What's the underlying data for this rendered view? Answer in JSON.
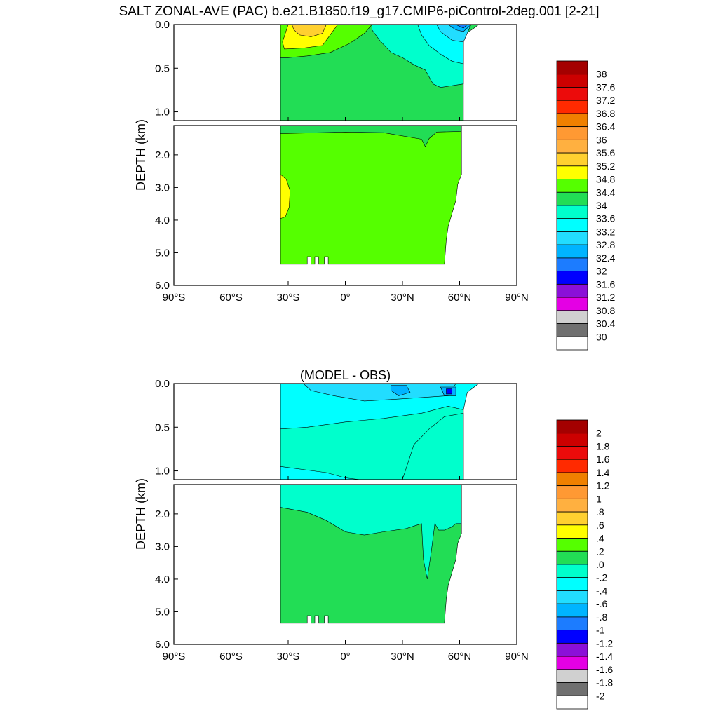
{
  "page": {
    "title": "SALT ZONAL-AVE (PAC) b.e21.B1850.f19_g17.CMIP6-piControl-2deg.001 [2-21]"
  },
  "chart_data": [
    {
      "type": "heatmap",
      "title": "",
      "xlabel": "",
      "ylabel": "DEPTH (km)",
      "xlim": [
        -90,
        90
      ],
      "ylim": [
        6,
        0
      ],
      "x_ticks": [
        {
          "v": -90,
          "label": "90°S"
        },
        {
          "v": -60,
          "label": "60°S"
        },
        {
          "v": -30,
          "label": "30°S"
        },
        {
          "v": 0,
          "label": "0°"
        },
        {
          "v": 30,
          "label": "30°N"
        },
        {
          "v": 60,
          "label": "60°N"
        },
        {
          "v": 90,
          "label": "90°N"
        }
      ],
      "y_ticks_upper": [
        {
          "v": 0.0,
          "label": "0.0"
        },
        {
          "v": 0.5,
          "label": "0.5"
        },
        {
          "v": 1.0,
          "label": "1.0"
        }
      ],
      "y_ticks_lower": [
        {
          "v": 2,
          "label": "2.0"
        },
        {
          "v": 3,
          "label": "3.0"
        },
        {
          "v": 4,
          "label": "4.0"
        },
        {
          "v": 5,
          "label": "5.0"
        },
        {
          "v": 6,
          "label": "6.0"
        }
      ],
      "colorbar": {
        "labels": [
          "38",
          "37.6",
          "37.2",
          "36.8",
          "36.4",
          "36",
          "35.6",
          "35.2",
          "34.8",
          "34.4",
          "34",
          "33.6",
          "33.2",
          "32.8",
          "32.4",
          "32",
          "31.6",
          "31.2",
          "30.8",
          "30.4",
          "30"
        ],
        "colors": [
          "#a40000",
          "#cc0000",
          "#ec0b0b",
          "#ff2a00",
          "#f08000",
          "#ff9933",
          "#ffb040",
          "#ffd030",
          "#ffff00",
          "#55ff00",
          "#22dd55",
          "#00ffcc",
          "#00ffff",
          "#22ddff",
          "#00b4ff",
          "#1c7cff",
          "#0000ff",
          "#8b10d8",
          "#e400e4",
          "#d0d0d0",
          "#707070",
          "#ffffff"
        ]
      },
      "basin": {
        "south_edge_lat": -34,
        "north_edge_upper_lat": 62,
        "bottom_depth_km": 5.35
      },
      "field_summary": [
        {
          "region": "deep interior",
          "range": "34.4-34.8"
        },
        {
          "region": "upper subtropical south",
          "range": "35.2-35.6"
        },
        {
          "region": "upper north pacific",
          "range": "33.2-34.0"
        },
        {
          "region": "far north surface",
          "range": "32.0-32.8"
        }
      ]
    },
    {
      "type": "heatmap",
      "title": "(MODEL - OBS)",
      "xlabel": "",
      "ylabel": "DEPTH (km)",
      "xlim": [
        -90,
        90
      ],
      "ylim": [
        6,
        0
      ],
      "x_ticks": [
        {
          "v": -90,
          "label": "90°S"
        },
        {
          "v": -60,
          "label": "60°S"
        },
        {
          "v": -30,
          "label": "30°S"
        },
        {
          "v": 0,
          "label": "0°"
        },
        {
          "v": 30,
          "label": "30°N"
        },
        {
          "v": 60,
          "label": "60°N"
        },
        {
          "v": 90,
          "label": "90°N"
        }
      ],
      "y_ticks_upper": [
        {
          "v": 0.0,
          "label": "0.0"
        },
        {
          "v": 0.5,
          "label": "0.5"
        },
        {
          "v": 1.0,
          "label": "1.0"
        }
      ],
      "y_ticks_lower": [
        {
          "v": 2,
          "label": "2.0"
        },
        {
          "v": 3,
          "label": "3.0"
        },
        {
          "v": 4,
          "label": "4.0"
        },
        {
          "v": 5,
          "label": "5.0"
        },
        {
          "v": 6,
          "label": "6.0"
        }
      ],
      "colorbar": {
        "labels": [
          "2",
          "1.8",
          "1.6",
          "1.4",
          "1.2",
          "1",
          ".8",
          ".6",
          ".4",
          ".2",
          ".0",
          "-.2",
          "-.4",
          "-.6",
          "-.8",
          "-1",
          "-1.2",
          "-1.4",
          "-1.6",
          "-1.8",
          "-2"
        ],
        "colors": [
          "#a40000",
          "#cc0000",
          "#ec0b0b",
          "#ff2a00",
          "#f08000",
          "#ff9933",
          "#ffb040",
          "#ffd030",
          "#ffff00",
          "#55ff00",
          "#22dd55",
          "#00ffcc",
          "#00ffff",
          "#22ddff",
          "#00b4ff",
          "#1c7cff",
          "#0000ff",
          "#8b10d8",
          "#e400e4",
          "#d0d0d0",
          "#707070",
          "#ffffff"
        ]
      },
      "basin": {
        "south_edge_lat": -34,
        "north_edge_upper_lat": 62,
        "bottom_depth_km": 5.35
      },
      "field_summary": [
        {
          "region": "deep interior",
          "range": "0.0-0.2"
        },
        {
          "region": "intermediate",
          "range": "-0.2-0.0"
        },
        {
          "region": "upper ocean",
          "range": "-0.4--0.2"
        },
        {
          "region": "far north surface",
          "range": "-1.0--0.6"
        }
      ]
    }
  ]
}
